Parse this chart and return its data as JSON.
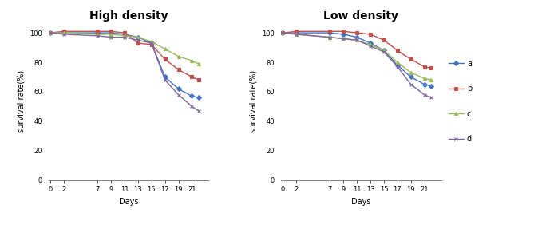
{
  "days": [
    0,
    2,
    7,
    9,
    11,
    13,
    15,
    17,
    19,
    21,
    22
  ],
  "high_density": {
    "a": [
      100,
      100,
      100,
      100,
      99,
      97,
      93,
      70,
      62,
      57,
      56
    ],
    "b": [
      100,
      101,
      101,
      101,
      100,
      93,
      92,
      82,
      75,
      70,
      68
    ],
    "c": [
      100,
      100,
      99,
      99,
      98,
      97,
      94,
      89,
      84,
      81,
      79
    ],
    "d": [
      100,
      99,
      98,
      97,
      97,
      95,
      93,
      68,
      58,
      50,
      47
    ]
  },
  "low_density": {
    "a": [
      100,
      100,
      100,
      99,
      97,
      93,
      88,
      78,
      70,
      65,
      64
    ],
    "b": [
      100,
      101,
      101,
      101,
      100,
      99,
      95,
      88,
      82,
      77,
      76
    ],
    "c": [
      100,
      99,
      97,
      96,
      95,
      92,
      88,
      80,
      73,
      69,
      68
    ],
    "d": [
      100,
      99,
      97,
      96,
      95,
      91,
      87,
      77,
      65,
      58,
      56
    ]
  },
  "colors": {
    "a": "#4472C4",
    "b": "#C0504D",
    "c": "#9BBB59",
    "d": "#8064A2"
  },
  "markers": {
    "a": "D",
    "b": "s",
    "c": "^",
    "d": "x"
  },
  "xticks": [
    0,
    2,
    7,
    9,
    11,
    13,
    15,
    17,
    19,
    21
  ],
  "yticks": [
    0,
    20,
    40,
    60,
    80,
    100
  ],
  "ylim": [
    0,
    107
  ],
  "xlim": [
    -0.3,
    23.5
  ],
  "xlabel": "Days",
  "ylabel": "survival rate(%)",
  "title_left": "High density",
  "title_right": "Low density",
  "legend_labels": [
    "a",
    "b",
    "c",
    "d"
  ],
  "markersize": 3,
  "linewidth": 1.0,
  "title_fontsize": 10,
  "axis_fontsize": 7,
  "tick_fontsize": 6,
  "legend_fontsize": 7
}
